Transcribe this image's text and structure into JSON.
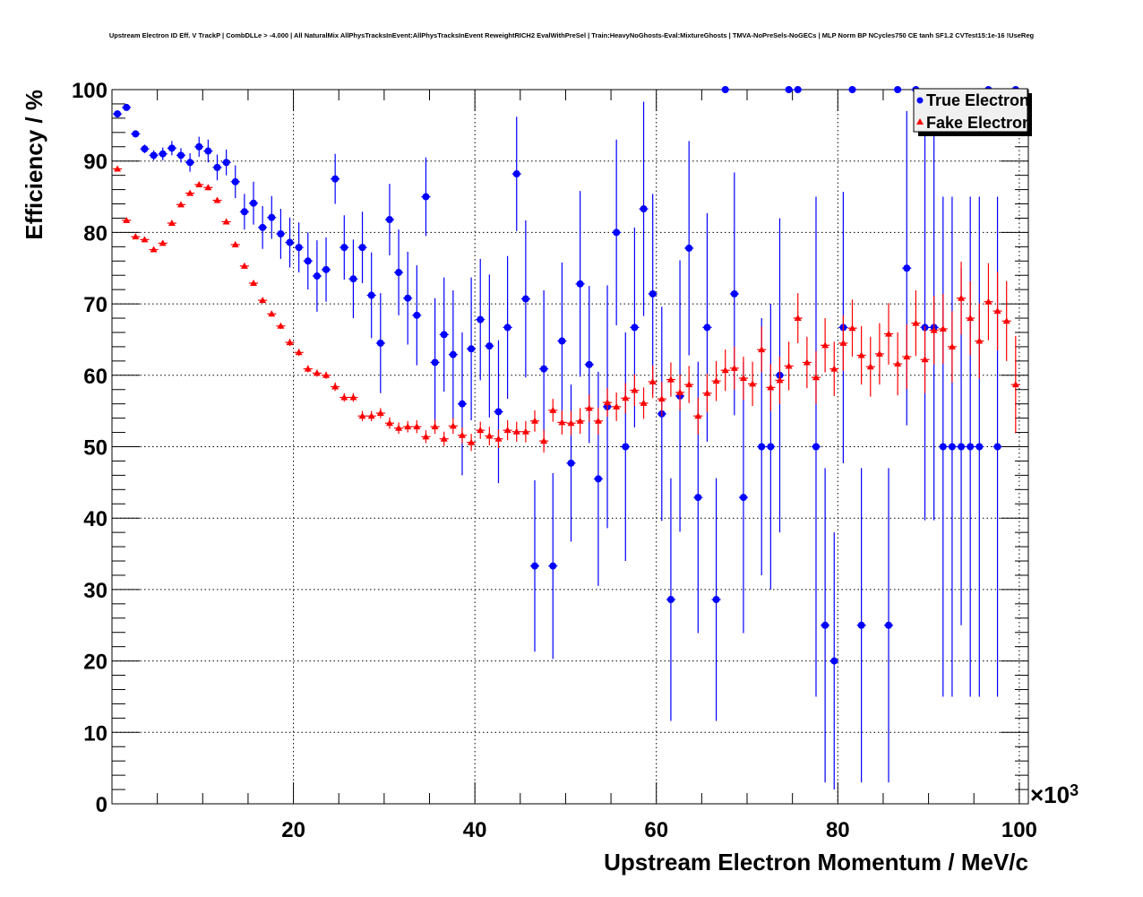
{
  "chart_data": {
    "type": "scatter",
    "title": "Upstream Electron ID Eff. V TrackP | CombDLLe > -4.000 | All NaturalMix AllPhysTracksInEvent:AllPhysTracksInEvent ReweightRICH2 EvalWithPreSel | Train:HeavyNoGhosts-Eval:MixtureGhosts | TMVA-NoPreSels-NoGECs | MLP Norm BP NCycles750 CE tanh SF1.2 CVTest15:1e-16 !UseReg",
    "xlabel": "Upstream Electron Momentum / MeV/c",
    "ylabel": "Efficiency / %",
    "x_multiplier_label": "×10",
    "x_multiplier_exp": "3",
    "xlim": [
      0,
      101
    ],
    "ylim": [
      0,
      100
    ],
    "xticks": [
      "20",
      "40",
      "60",
      "80",
      "100"
    ],
    "yticks": [
      "0",
      "10",
      "20",
      "30",
      "40",
      "50",
      "60",
      "70",
      "80",
      "90",
      "100"
    ],
    "grid": true,
    "legend_position": "top-right",
    "x_start": 0.6,
    "x_step": 1.0,
    "series": [
      {
        "name": "True Electron",
        "color": "#0000ff",
        "marker": "circle",
        "values": [
          96.6,
          97.5,
          93.8,
          91.7,
          90.8,
          91.0,
          91.8,
          90.8,
          89.8,
          92.0,
          91.4,
          89.1,
          89.8,
          87.1,
          82.9,
          84.1,
          80.7,
          82.1,
          79.8,
          78.6,
          77.9,
          76.0,
          73.9,
          74.8,
          87.5,
          77.9,
          73.5,
          77.9,
          71.2,
          64.5,
          81.8,
          74.4,
          70.8,
          68.4,
          85.0,
          61.8,
          65.7,
          62.9,
          56.0,
          63.7,
          67.8,
          64.1,
          54.9,
          66.7,
          88.2,
          70.7,
          33.3,
          60.9,
          33.3,
          64.8,
          47.7,
          72.8,
          61.5,
          45.5,
          55.6,
          80.0,
          50.0,
          66.7,
          83.3,
          71.4,
          54.6,
          28.6,
          57.1,
          77.8,
          42.9,
          66.7,
          28.6,
          100,
          71.4,
          42.9,
          null,
          50,
          50,
          60,
          100,
          100,
          null,
          50,
          25,
          20,
          66.7,
          100,
          25,
          null,
          null,
          25,
          100,
          75,
          100,
          66.7,
          66.7,
          50,
          50,
          50,
          50,
          50,
          100,
          50,
          null,
          100
        ],
        "errors": [
          0.5,
          0.4,
          0.5,
          0.6,
          0.7,
          0.9,
          1,
          1,
          1.3,
          1.4,
          1.6,
          1.8,
          1.8,
          2.3,
          2.5,
          3,
          3,
          3,
          3.5,
          3.5,
          3.5,
          4,
          5,
          4.5,
          3.5,
          4.5,
          5.5,
          5,
          6,
          7,
          5,
          6,
          6.5,
          7,
          5.5,
          9,
          8,
          9,
          10,
          10,
          8.5,
          10,
          10,
          10,
          8,
          11,
          12,
          11,
          13,
          11,
          11,
          13,
          11,
          15,
          17,
          13,
          16,
          14,
          15,
          14,
          15,
          17,
          19,
          15,
          19,
          16,
          17,
          0,
          17,
          19,
          null,
          18,
          20,
          22,
          0,
          0,
          null,
          35,
          22,
          18,
          19,
          0,
          22,
          null,
          null,
          22,
          0,
          22,
          0,
          27,
          27,
          35,
          35,
          25,
          35,
          35,
          0,
          35,
          null,
          0
        ]
      },
      {
        "name": "Fake Electron",
        "color": "#ff0000",
        "marker": "triangle",
        "values": [
          88.9,
          81.7,
          79.4,
          79.0,
          77.6,
          78.5,
          81.3,
          83.9,
          85.5,
          86.7,
          86.3,
          84.5,
          81.5,
          78.3,
          75.3,
          72.9,
          70.5,
          68.6,
          66.9,
          64.6,
          63.2,
          60.9,
          60.3,
          60.0,
          58.4,
          56.9,
          56.9,
          54.3,
          54.3,
          54.7,
          53.3,
          52.6,
          52.8,
          52.8,
          51.4,
          52.8,
          51.1,
          52.9,
          51.6,
          50.6,
          52.3,
          51.5,
          51.1,
          52.3,
          52.1,
          52.1,
          53.6,
          50.8,
          55.1,
          53.4,
          53.3,
          53.6,
          55.4,
          53.6,
          56.2,
          55.6,
          56.8,
          57.9,
          56.1,
          59.1,
          56.7,
          59.4,
          57.6,
          58.7,
          54.3,
          57.5,
          59.2,
          60.7,
          61.0,
          59.6,
          58.8,
          63.6,
          58.3,
          59.3,
          61.3,
          68.0,
          61.8,
          59.7,
          64.2,
          60.9,
          64.5,
          66.6,
          62.8,
          61.2,
          63.0,
          65.8,
          61.6,
          62.6,
          67.3,
          62.2,
          66.3,
          66.5,
          64.0,
          70.8,
          68.0,
          64.8,
          70.3,
          69.0,
          67.6,
          58.7
        ],
        "errors": [
          0.3,
          0.3,
          0.3,
          0.3,
          0.3,
          0.3,
          0.3,
          0.3,
          0.3,
          0.3,
          0.4,
          0.4,
          0.4,
          0.4,
          0.4,
          0.4,
          0.4,
          0.4,
          0.4,
          0.5,
          0.5,
          0.5,
          0.5,
          0.5,
          0.6,
          0.6,
          0.6,
          0.7,
          0.7,
          0.7,
          0.8,
          0.8,
          0.8,
          0.9,
          0.9,
          1.0,
          1.0,
          1.1,
          1.1,
          1.2,
          1.2,
          1.3,
          1.3,
          1.4,
          1.4,
          1.5,
          1.5,
          1.6,
          1.6,
          1.7,
          1.7,
          1.8,
          1.9,
          1.9,
          2.0,
          2.0,
          2.1,
          2.2,
          2.2,
          2.3,
          2.4,
          2.4,
          2.5,
          2.6,
          2.6,
          2.7,
          2.8,
          2.9,
          3.0,
          3.0,
          3.1,
          3.2,
          3.3,
          3.3,
          3.4,
          3.5,
          3.6,
          3.7,
          3.8,
          3.8,
          3.9,
          4.0,
          4.1,
          4.2,
          4.3,
          4.3,
          4.4,
          4.5,
          4.6,
          4.7,
          4.8,
          4.9,
          5.0,
          5.1,
          5.2,
          5.3,
          5.4,
          5.5,
          5.6,
          6.8
        ]
      }
    ]
  }
}
